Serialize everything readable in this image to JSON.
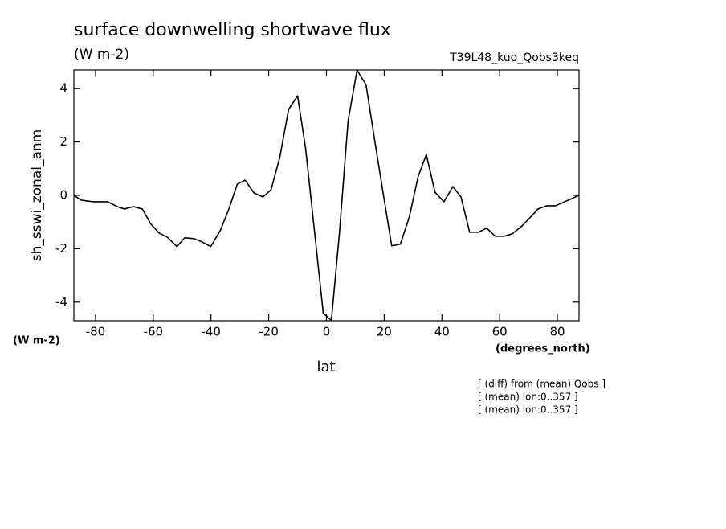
{
  "chart_data": {
    "type": "line",
    "title": "surface downwelling shortwave flux",
    "subtitle": "(W m-2)",
    "label": "T39L48_kuo_Qobs3keq",
    "y_label": "sh_sswi_zonal_anm",
    "y_units": "(W m-2)",
    "x_units": "(degrees_north)",
    "x_label": "lat",
    "notes": [
      "[ (diff) from (mean) Qobs ]",
      "[ (mean) lon:0..357 ]",
      "[ (mean) lon:0..357 ]"
    ],
    "color": "#000000",
    "x": [
      -87.5,
      -85,
      -80.9,
      -75.8,
      -72.5,
      -70,
      -66.9,
      -63.8,
      -60.8,
      -58,
      -55.2,
      -51.8,
      -49.1,
      -46,
      -43.2,
      -40.1,
      -36.8,
      -34,
      -30.9,
      -28.2,
      -25.1,
      -22,
      -19.2,
      -16.2,
      -13.1,
      -10,
      -7.2,
      -4.2,
      -1.1,
      1.7,
      4.5,
      7.5,
      10.6,
      13.7,
      16.7,
      19.8,
      22.6,
      25.6,
      28.7,
      31.8,
      34.6,
      37.6,
      40.7,
      43.8,
      46.6,
      49.6,
      52.7,
      55.5,
      58.5,
      61.6,
      64.4,
      67.5,
      70.5,
      73.3,
      76.4,
      79.4,
      82.5,
      87.5
    ],
    "values": [
      0,
      -0.18,
      -0.24,
      -0.24,
      -0.42,
      -0.51,
      -0.42,
      -0.51,
      -1.08,
      -1.41,
      -1.56,
      -1.92,
      -1.59,
      -1.62,
      -1.74,
      -1.92,
      -1.32,
      -0.57,
      0.42,
      0.57,
      0.09,
      -0.06,
      0.21,
      1.41,
      3.22,
      3.73,
      1.74,
      -1.29,
      -4.42,
      -4.69,
      -1.41,
      2.8,
      4.69,
      4.15,
      2.07,
      -0.03,
      -1.89,
      -1.83,
      -0.81,
      0.72,
      1.53,
      0.12,
      -0.24,
      0.33,
      -0.06,
      -1.38,
      -1.38,
      -1.23,
      -1.53,
      -1.53,
      -1.44,
      -1.17,
      -0.84,
      -0.51,
      -0.39,
      -0.39,
      -0.24,
      0
    ],
    "xlim": [
      -87.5,
      87.5
    ],
    "xticks": [
      -80,
      -60,
      -40,
      -20,
      0,
      20,
      40,
      60,
      80
    ],
    "ylim": [
      -4.7,
      4.7
    ],
    "yticks": [
      -4,
      -2,
      0,
      2,
      4
    ],
    "grid": false
  }
}
